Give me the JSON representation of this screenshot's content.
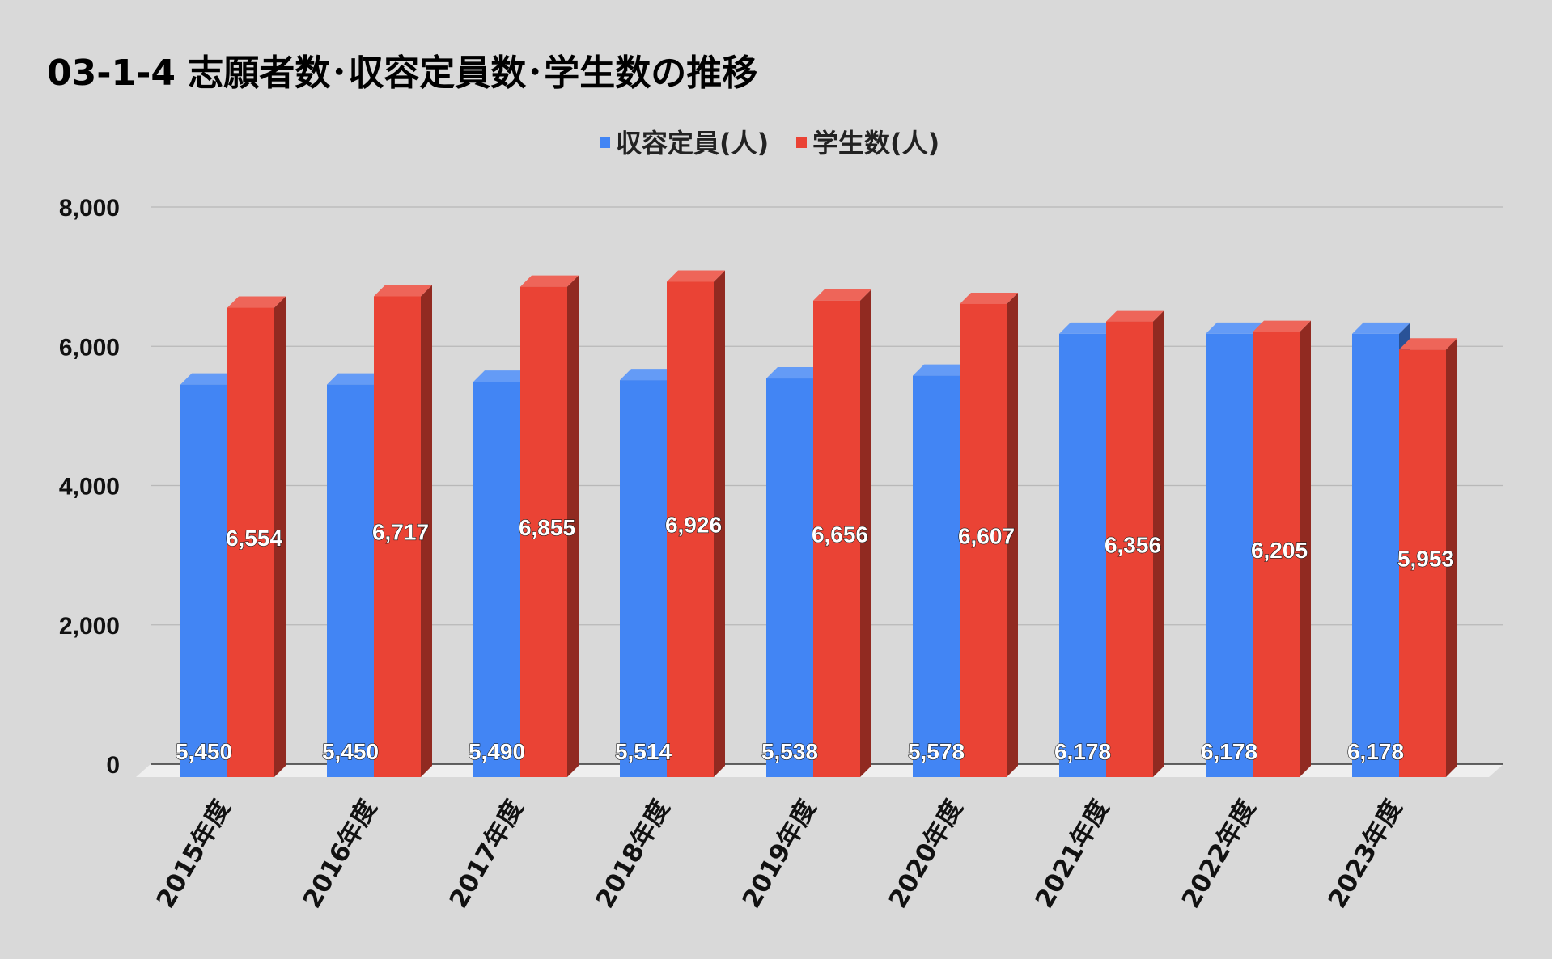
{
  "chart_data": {
    "type": "bar",
    "title": "03-1-4 志願者数･収容定員数･学生数の推移",
    "categories": [
      "2015年度",
      "2016年度",
      "2017年度",
      "2018年度",
      "2019年度",
      "2020年度",
      "2021年度",
      "2022年度",
      "2023年度"
    ],
    "series": [
      {
        "name": "収容定員(人)",
        "color": "#4285f4",
        "values": [
          5450,
          5450,
          5490,
          5514,
          5538,
          5578,
          6178,
          6178,
          6178
        ],
        "labels": [
          "5,450",
          "5,450",
          "5,490",
          "5,514",
          "5,538",
          "5,578",
          "6,178",
          "6,178",
          "6,178"
        ]
      },
      {
        "name": "学生数(人)",
        "color": "#ea4335",
        "values": [
          6554,
          6717,
          6855,
          6926,
          6656,
          6607,
          6356,
          6205,
          5953
        ],
        "labels": [
          "6,554",
          "6,717",
          "6,855",
          "6,926",
          "6,656",
          "6,607",
          "6,356",
          "6,205",
          "5,953"
        ]
      }
    ],
    "ylim": [
      0,
      8000
    ],
    "yticks": [
      0,
      2000,
      4000,
      6000,
      8000
    ],
    "ytick_labels": [
      "0",
      "2,000",
      "4,000",
      "6,000",
      "8,000"
    ],
    "xlabel": "",
    "ylabel": "",
    "legend_position": "top-center",
    "grid": true,
    "style": "3d-bar"
  }
}
